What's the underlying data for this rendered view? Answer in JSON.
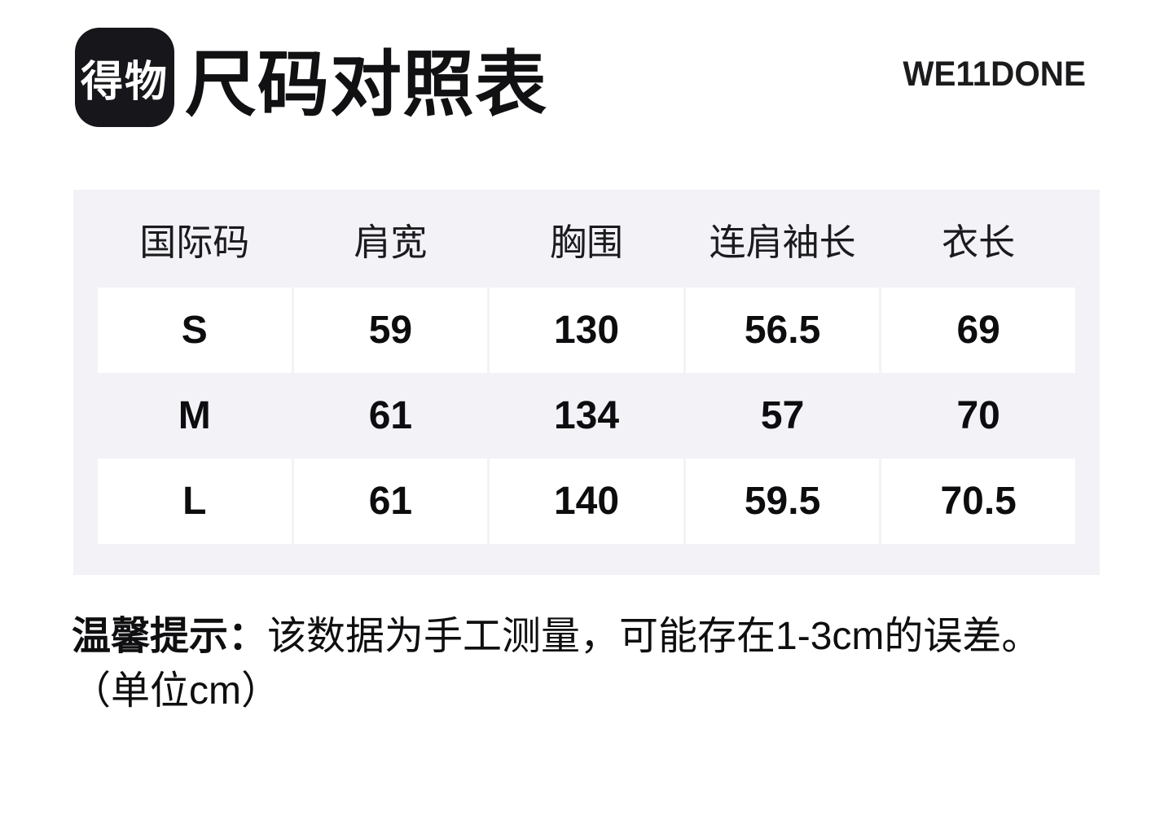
{
  "header": {
    "logo_text": "得物",
    "title": "尺码对照表",
    "brand": "WE11DONE"
  },
  "chart_data": {
    "type": "table",
    "title": "尺码对照表",
    "columns": [
      "国际码",
      "肩宽",
      "胸围",
      "连肩袖长",
      "衣长"
    ],
    "rows": [
      [
        "S",
        59,
        130,
        56.5,
        69
      ],
      [
        "M",
        61,
        134,
        57,
        70
      ],
      [
        "L",
        61,
        140,
        59.5,
        70.5
      ]
    ],
    "unit": "cm",
    "layout": "5-column size chart, header row on gray panel, S and L rows with white cells, M row on gray"
  },
  "note": {
    "label": "温馨提示：",
    "text": "该数据为手工测量，可能存在1-3cm的误差。",
    "unit_line": "（单位cm）"
  },
  "colors": {
    "page_background": "#ffffff",
    "panel_background": "#f2f2f7",
    "cell_background": "#ffffff",
    "logo_background": "#17171b",
    "text_primary": "#0d0d0f"
  }
}
